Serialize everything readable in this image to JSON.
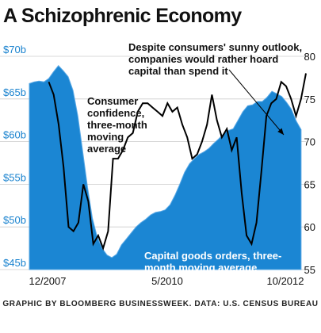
{
  "title": "A Schizophrenic Economy",
  "credit": "GRAPHIC BY BLOOMBERG BUSINESSWEEK. DATA: U.S. CENSUS BUREAU",
  "colors": {
    "area_fill": "#1b86d3",
    "area_edge": "#5aa9e6",
    "line": "#000000",
    "left_axis_text": "#1a83cf",
    "right_axis_text": "#111111",
    "grid": "#cccccc"
  },
  "chart_data": {
    "type": "area",
    "x_ticks": [
      "12/2007",
      "5/2010",
      "10/2012"
    ],
    "left_axis": {
      "ticks": [
        "$70b",
        "$65b",
        "$60b",
        "$55b",
        "$50b",
        "$45b"
      ],
      "ylim": [
        45,
        70
      ]
    },
    "right_axis": {
      "ticks": [
        "80",
        "75",
        "70",
        "65",
        "60",
        "55"
      ],
      "ylim": [
        55,
        80
      ]
    },
    "grid": true,
    "series": [
      {
        "name": "Capital goods orders, three-month moving average",
        "type": "area",
        "axis": "left",
        "values": [
          66.8,
          67.0,
          67.1,
          67.0,
          67.4,
          68.2,
          68.9,
          68.3,
          67.6,
          66.0,
          63.0,
          58.8,
          54.6,
          51.0,
          48.8,
          47.5,
          46.7,
          46.4,
          46.8,
          47.9,
          48.6,
          49.3,
          50.0,
          50.5,
          50.9,
          51.4,
          51.7,
          51.8,
          52.0,
          52.6,
          53.7,
          55.0,
          56.4,
          57.4,
          58.0,
          58.5,
          58.8,
          59.2,
          59.8,
          60.3,
          60.9,
          61.3,
          61.5,
          62.5,
          63.5,
          64.2,
          64.3,
          64.7,
          64.7,
          65.2,
          65.9,
          65.6,
          65.3,
          64.6,
          63.8,
          62.4,
          61.4
        ],
        "x_start_index": 0,
        "x_end_index": 57
      },
      {
        "name": "Consumer confidence, three-month moving average",
        "type": "line",
        "axis": "right",
        "values": [
          77.0,
          75.5,
          72.0,
          67.0,
          60.0,
          59.5,
          60.5,
          65.0,
          63.0,
          58.0,
          59.0,
          57.5,
          59.5,
          68.0,
          68.0,
          69.0,
          70.5,
          71.0,
          73.5,
          74.5,
          74.5,
          74.0,
          73.5,
          73.0,
          74.5,
          73.5,
          74.0,
          72.0,
          70.5,
          68.0,
          68.5,
          70.0,
          72.0,
          75.5,
          72.5,
          70.5,
          71.5,
          69.0,
          70.5,
          64.0,
          59.0,
          58.0,
          60.5,
          66.5,
          73.0,
          74.5,
          75.0,
          77.0,
          76.5,
          75.0,
          73.0,
          75.0,
          78.0
        ],
        "x_start_index": 4,
        "x_end_index": 57
      }
    ],
    "annotations": {
      "top": [
        "Despite consumers' sunny outlook,",
        "companies would rather hoard",
        "capital than spend it"
      ],
      "line_label": [
        "Consumer",
        "confidence,",
        "three-month",
        "moving",
        "average"
      ],
      "area_label": [
        "Capital goods orders, three-",
        "month moving average"
      ]
    }
  }
}
